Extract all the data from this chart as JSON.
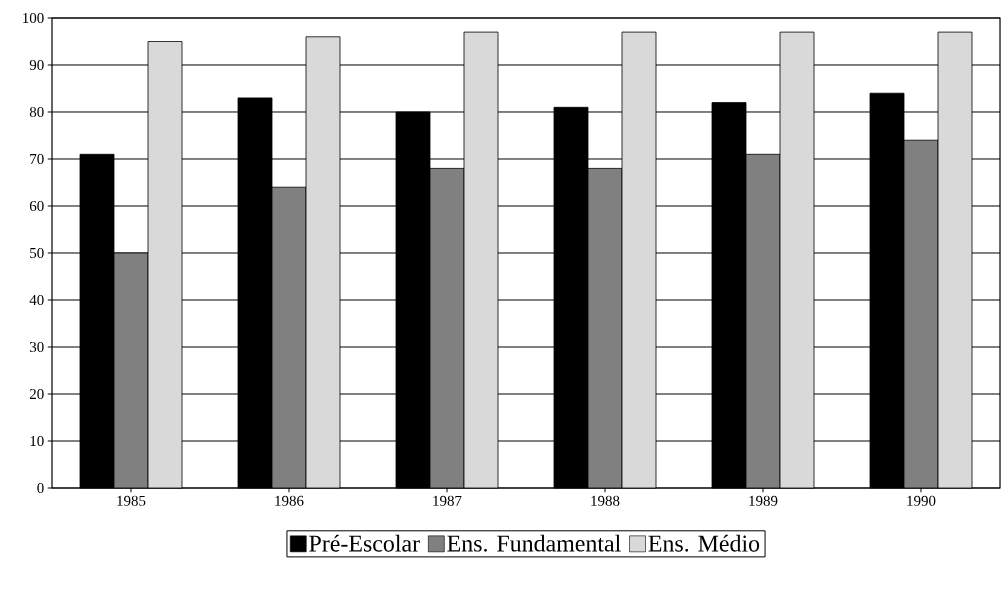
{
  "chart_data": {
    "type": "bar",
    "categories": [
      "1985",
      "1986",
      "1987",
      "1988",
      "1989",
      "1990"
    ],
    "series": [
      {
        "name": "Pré-Escolar",
        "color": "#000000",
        "values": [
          71,
          83,
          80,
          81,
          82,
          84
        ]
      },
      {
        "name": "Ens. Fundamental",
        "color": "#808080",
        "values": [
          50,
          64,
          68,
          68,
          71,
          74
        ]
      },
      {
        "name": "Ens. Médio",
        "color": "#d9d9d9",
        "values": [
          95,
          96,
          97,
          97,
          97,
          97
        ]
      }
    ],
    "ylim": [
      0,
      100
    ],
    "yticks": [
      0,
      10,
      20,
      30,
      40,
      50,
      60,
      70,
      80,
      90,
      100
    ],
    "grid": "y",
    "legend": "bottom"
  }
}
